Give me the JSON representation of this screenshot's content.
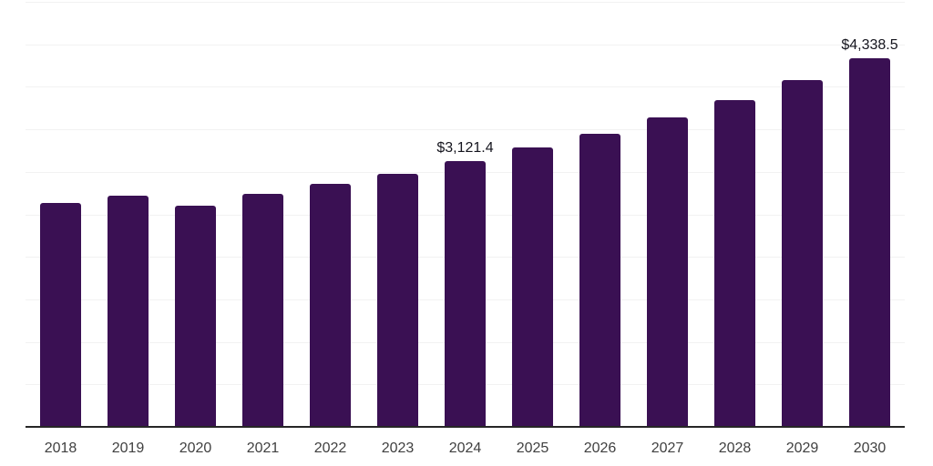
{
  "chart_data": {
    "type": "bar",
    "title": "",
    "xlabel": "",
    "ylabel": "",
    "categories": [
      "2018",
      "2019",
      "2020",
      "2021",
      "2022",
      "2023",
      "2024",
      "2025",
      "2026",
      "2027",
      "2028",
      "2029",
      "2030"
    ],
    "values": [
      2630,
      2725,
      2600,
      2740,
      2855,
      2980,
      3121.4,
      3285,
      3445,
      3640,
      3845,
      4075,
      4338.5
    ],
    "data_labels": {
      "2024": "$3,121.4",
      "2030": "$4,338.5"
    },
    "ylim": [
      0,
      5000
    ],
    "gridline_step": 500,
    "grid": true,
    "legend": false,
    "bar_color": "#3a1053",
    "axis_color": "#262626",
    "gridline_color": "#f2f2f2",
    "tick_label_color": "#404040",
    "value_label_color": "#15151e",
    "background_color": "#ffffff"
  }
}
